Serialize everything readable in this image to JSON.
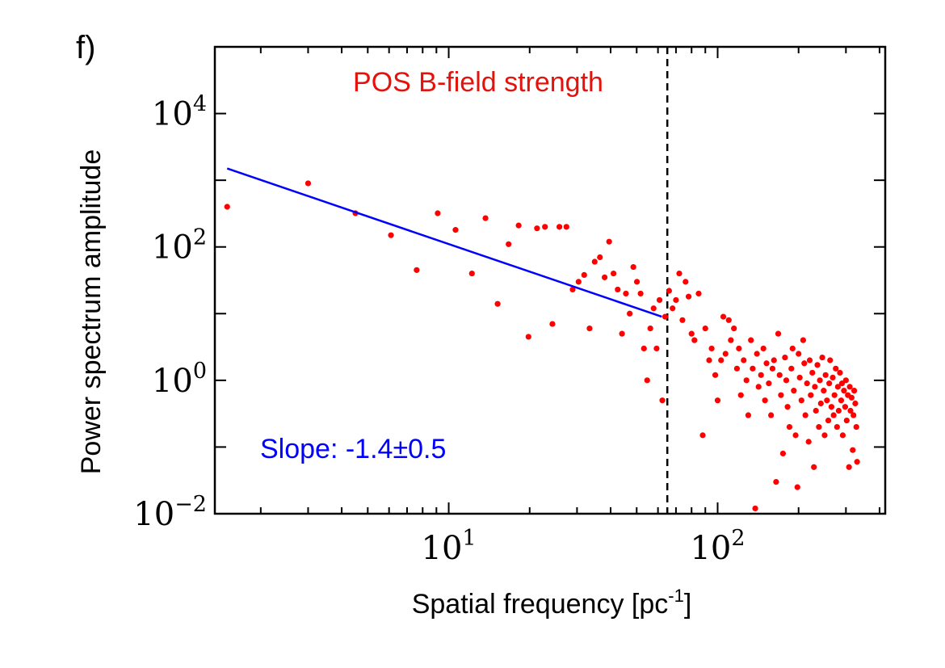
{
  "panel_label": "f)",
  "chart_data": {
    "type": "scatter",
    "title": "POS B-field strength",
    "xlabel": "Spatial frequency [pc",
    "xlabel_sup": "-1",
    "xlabel_suffix": "]",
    "ylabel": "Power spectrum amplitude",
    "xscale": "log",
    "yscale": "log",
    "xlim": [
      1.35,
      420
    ],
    "ylim": [
      0.01,
      100000
    ],
    "x_ticks": [
      {
        "base": "10",
        "exp": "1",
        "value": 10
      },
      {
        "base": "10",
        "exp": "2",
        "value": 100
      }
    ],
    "y_ticks": [
      {
        "base": "10",
        "exp": "4",
        "value": 10000
      },
      {
        "base": "10",
        "exp": "2",
        "value": 100
      },
      {
        "base": "10",
        "exp": "0",
        "value": 1
      },
      {
        "base": "10",
        "exp": "−2",
        "value": 0.01
      }
    ],
    "cutoff_x": 65,
    "fit": {
      "label": "Slope: -1.4±0.5",
      "color": "#0000ff",
      "x": [
        1.5,
        62
      ],
      "y": [
        1500,
        9
      ]
    },
    "points_color": "#ff0000",
    "points": [
      [
        1.5,
        400
      ],
      [
        3.0,
        900
      ],
      [
        4.5,
        320
      ],
      [
        6.1,
        150
      ],
      [
        7.6,
        45
      ],
      [
        9.1,
        320
      ],
      [
        10.6,
        180
      ],
      [
        12.2,
        40
      ],
      [
        13.7,
        270
      ],
      [
        15.2,
        14
      ],
      [
        16.7,
        110
      ],
      [
        18.2,
        210
      ],
      [
        19.8,
        4.5
      ],
      [
        21.3,
        190
      ],
      [
        22.8,
        200
      ],
      [
        24.3,
        7
      ],
      [
        25.8,
        200
      ],
      [
        27.4,
        200
      ],
      [
        28.9,
        23
      ],
      [
        30.4,
        30
      ],
      [
        31.9,
        38
      ],
      [
        33.4,
        6
      ],
      [
        34.9,
        60
      ],
      [
        36.5,
        70
      ],
      [
        38.0,
        35
      ],
      [
        39.5,
        120
      ],
      [
        41.0,
        40
      ],
      [
        42.5,
        23
      ],
      [
        44.1,
        5
      ],
      [
        45.6,
        20
      ],
      [
        47.1,
        10
      ],
      [
        48.6,
        50
      ],
      [
        50.1,
        30
      ],
      [
        51.7,
        20
      ],
      [
        53.2,
        3
      ],
      [
        54.7,
        1
      ],
      [
        56.2,
        6
      ],
      [
        57.8,
        12
      ],
      [
        59.3,
        3
      ],
      [
        60.8,
        16
      ],
      [
        62.3,
        0.5
      ],
      [
        63.8,
        9
      ],
      [
        66,
        22
      ],
      [
        68,
        12
      ],
      [
        70,
        16
      ],
      [
        72,
        40
      ],
      [
        74,
        8
      ],
      [
        76,
        30
      ],
      [
        78,
        18
      ],
      [
        80,
        5
      ],
      [
        82,
        4
      ],
      [
        85,
        20
      ],
      [
        88,
        0.15
      ],
      [
        90,
        6
      ],
      [
        93,
        2
      ],
      [
        95,
        3
      ],
      [
        98,
        1.2
      ],
      [
        100,
        0.5
      ],
      [
        103,
        2
      ],
      [
        105,
        9
      ],
      [
        107,
        2.5
      ],
      [
        110,
        8
      ],
      [
        112,
        4
      ],
      [
        115,
        6
      ],
      [
        118,
        1.5
      ],
      [
        120,
        3
      ],
      [
        122,
        0.6
      ],
      [
        125,
        2
      ],
      [
        128,
        1
      ],
      [
        130,
        0.3
      ],
      [
        133,
        4
      ],
      [
        135,
        1.5
      ],
      [
        138,
        0.012
      ],
      [
        140,
        2.5
      ],
      [
        142,
        0.8
      ],
      [
        145,
        1.2
      ],
      [
        148,
        3
      ],
      [
        150,
        0.5
      ],
      [
        152,
        1.8
      ],
      [
        155,
        0.9
      ],
      [
        158,
        0.3
      ],
      [
        160,
        1.5
      ],
      [
        162,
        2
      ],
      [
        165,
        0.03
      ],
      [
        168,
        5
      ],
      [
        170,
        1.2
      ],
      [
        172,
        0.6
      ],
      [
        175,
        0.08
      ],
      [
        178,
        2.2
      ],
      [
        180,
        1
      ],
      [
        182,
        0.4
      ],
      [
        185,
        0.2
      ],
      [
        188,
        1.5
      ],
      [
        190,
        3
      ],
      [
        192,
        0.7
      ],
      [
        195,
        0.15
      ],
      [
        198,
        0.025
      ],
      [
        200,
        2.5
      ],
      [
        202,
        1.1
      ],
      [
        205,
        0.5
      ],
      [
        208,
        4
      ],
      [
        210,
        1.8
      ],
      [
        212,
        0.3
      ],
      [
        215,
        0.9
      ],
      [
        218,
        0.12
      ],
      [
        220,
        2
      ],
      [
        222,
        0.6
      ],
      [
        225,
        1.3
      ],
      [
        228,
        0.05
      ],
      [
        230,
        0.8
      ],
      [
        232,
        0.35
      ],
      [
        235,
        1.7
      ],
      [
        238,
        0.2
      ],
      [
        240,
        1
      ],
      [
        242,
        0.45
      ],
      [
        245,
        2.2
      ],
      [
        248,
        0.7
      ],
      [
        250,
        0.15
      ],
      [
        252,
        1.2
      ],
      [
        255,
        0.5
      ],
      [
        258,
        0.25
      ],
      [
        260,
        0.9
      ],
      [
        262,
        2
      ],
      [
        265,
        0.4
      ],
      [
        268,
        1.1
      ],
      [
        270,
        0.3
      ],
      [
        272,
        0.6
      ],
      [
        275,
        1.5
      ],
      [
        278,
        0.2
      ],
      [
        280,
        0.8
      ],
      [
        282,
        0.35
      ],
      [
        285,
        1.3
      ],
      [
        288,
        0.5
      ],
      [
        290,
        0.9
      ],
      [
        292,
        0.15
      ],
      [
        295,
        0.7
      ],
      [
        298,
        0.4
      ],
      [
        300,
        1
      ],
      [
        302,
        0.25
      ],
      [
        305,
        0.6
      ],
      [
        308,
        0.05
      ],
      [
        310,
        0.8
      ],
      [
        312,
        0.35
      ],
      [
        315,
        0.55
      ],
      [
        318,
        0.09
      ],
      [
        320,
        0.3
      ],
      [
        322,
        0.7
      ],
      [
        325,
        0.45
      ],
      [
        328,
        0.2
      ],
      [
        330,
        0.06
      ]
    ]
  }
}
